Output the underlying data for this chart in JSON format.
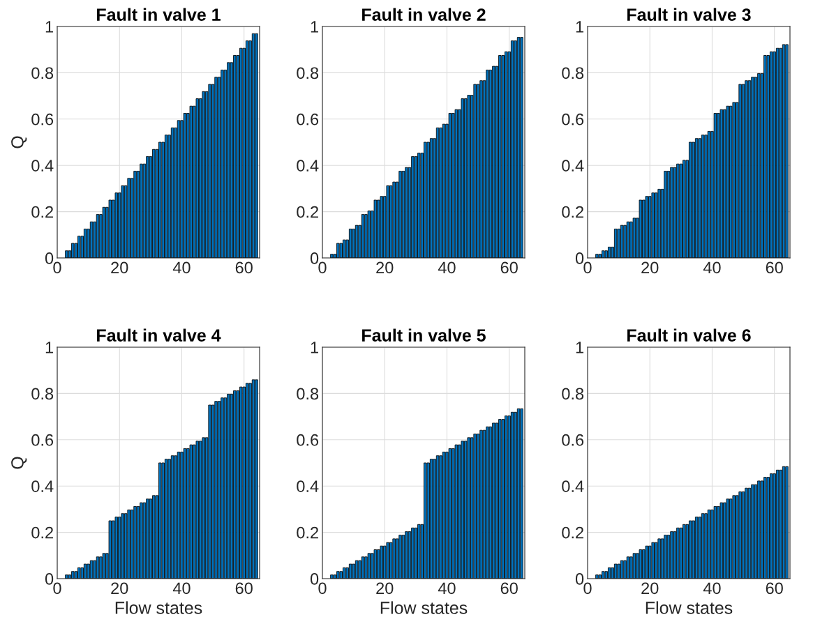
{
  "chart_data": [
    {
      "type": "bar",
      "title": "Fault in valve 1",
      "ylabel": "Q",
      "color": "#0072bd",
      "grid": true,
      "xlim": [
        0,
        65
      ],
      "ylim": [
        0,
        1
      ],
      "xticks": [
        0,
        20,
        40,
        60
      ],
      "yticks": [
        0,
        0.2,
        0.4,
        0.6,
        0.8,
        1
      ],
      "x": [
        1,
        2,
        3,
        4,
        5,
        6,
        7,
        8,
        9,
        10,
        11,
        12,
        13,
        14,
        15,
        16,
        17,
        18,
        19,
        20,
        21,
        22,
        23,
        24,
        25,
        26,
        27,
        28,
        29,
        30,
        31,
        32,
        33,
        34,
        35,
        36,
        37,
        38,
        39,
        40,
        41,
        42,
        43,
        44,
        45,
        46,
        47,
        48,
        49,
        50,
        51,
        52,
        53,
        54,
        55,
        56,
        57,
        58,
        59,
        60,
        61,
        62,
        63,
        64
      ],
      "values": [
        0,
        0,
        0.031,
        0.031,
        0.063,
        0.063,
        0.094,
        0.094,
        0.125,
        0.125,
        0.156,
        0.156,
        0.188,
        0.188,
        0.219,
        0.219,
        0.25,
        0.25,
        0.281,
        0.281,
        0.312,
        0.312,
        0.344,
        0.344,
        0.375,
        0.375,
        0.406,
        0.406,
        0.438,
        0.438,
        0.469,
        0.469,
        0.5,
        0.5,
        0.531,
        0.531,
        0.562,
        0.562,
        0.594,
        0.594,
        0.625,
        0.625,
        0.656,
        0.656,
        0.688,
        0.688,
        0.719,
        0.719,
        0.75,
        0.75,
        0.781,
        0.781,
        0.812,
        0.812,
        0.844,
        0.844,
        0.875,
        0.875,
        0.906,
        0.906,
        0.938,
        0.938,
        0.969,
        0.969
      ]
    },
    {
      "type": "bar",
      "title": "Fault in valve 2",
      "color": "#0072bd",
      "grid": true,
      "xlim": [
        0,
        65
      ],
      "ylim": [
        0,
        1
      ],
      "xticks": [
        0,
        20,
        40,
        60
      ],
      "yticks": [
        0,
        0.2,
        0.4,
        0.6,
        0.8,
        1
      ],
      "x": [
        1,
        2,
        3,
        4,
        5,
        6,
        7,
        8,
        9,
        10,
        11,
        12,
        13,
        14,
        15,
        16,
        17,
        18,
        19,
        20,
        21,
        22,
        23,
        24,
        25,
        26,
        27,
        28,
        29,
        30,
        31,
        32,
        33,
        34,
        35,
        36,
        37,
        38,
        39,
        40,
        41,
        42,
        43,
        44,
        45,
        46,
        47,
        48,
        49,
        50,
        51,
        52,
        53,
        54,
        55,
        56,
        57,
        58,
        59,
        60,
        61,
        62,
        63,
        64
      ],
      "values": [
        0,
        0,
        0.016,
        0.016,
        0.063,
        0.063,
        0.078,
        0.078,
        0.125,
        0.125,
        0.141,
        0.141,
        0.188,
        0.188,
        0.203,
        0.203,
        0.25,
        0.25,
        0.266,
        0.266,
        0.312,
        0.312,
        0.328,
        0.328,
        0.375,
        0.375,
        0.391,
        0.391,
        0.438,
        0.438,
        0.453,
        0.453,
        0.5,
        0.5,
        0.516,
        0.516,
        0.562,
        0.562,
        0.578,
        0.578,
        0.625,
        0.625,
        0.641,
        0.641,
        0.688,
        0.688,
        0.703,
        0.703,
        0.75,
        0.75,
        0.766,
        0.766,
        0.812,
        0.812,
        0.828,
        0.828,
        0.875,
        0.875,
        0.891,
        0.891,
        0.938,
        0.938,
        0.953,
        0.953
      ]
    },
    {
      "type": "bar",
      "title": "Fault in valve 3",
      "color": "#0072bd",
      "grid": true,
      "xlim": [
        0,
        65
      ],
      "ylim": [
        0,
        1
      ],
      "xticks": [
        0,
        20,
        40,
        60
      ],
      "yticks": [
        0,
        0.2,
        0.4,
        0.6,
        0.8,
        1
      ],
      "x": [
        1,
        2,
        3,
        4,
        5,
        6,
        7,
        8,
        9,
        10,
        11,
        12,
        13,
        14,
        15,
        16,
        17,
        18,
        19,
        20,
        21,
        22,
        23,
        24,
        25,
        26,
        27,
        28,
        29,
        30,
        31,
        32,
        33,
        34,
        35,
        36,
        37,
        38,
        39,
        40,
        41,
        42,
        43,
        44,
        45,
        46,
        47,
        48,
        49,
        50,
        51,
        52,
        53,
        54,
        55,
        56,
        57,
        58,
        59,
        60,
        61,
        62,
        63,
        64
      ],
      "values": [
        0,
        0,
        0.016,
        0.016,
        0.031,
        0.031,
        0.047,
        0.047,
        0.125,
        0.125,
        0.141,
        0.141,
        0.156,
        0.156,
        0.172,
        0.172,
        0.25,
        0.25,
        0.266,
        0.266,
        0.281,
        0.281,
        0.297,
        0.297,
        0.375,
        0.375,
        0.391,
        0.391,
        0.406,
        0.406,
        0.422,
        0.422,
        0.5,
        0.5,
        0.516,
        0.516,
        0.531,
        0.531,
        0.547,
        0.547,
        0.625,
        0.625,
        0.641,
        0.641,
        0.656,
        0.656,
        0.672,
        0.672,
        0.75,
        0.75,
        0.766,
        0.766,
        0.781,
        0.781,
        0.797,
        0.797,
        0.875,
        0.875,
        0.891,
        0.891,
        0.906,
        0.906,
        0.922,
        0.922
      ]
    },
    {
      "type": "bar",
      "title": "Fault in valve 4",
      "ylabel": "Q",
      "xlabel": "Flow states",
      "color": "#0072bd",
      "grid": true,
      "xlim": [
        0,
        65
      ],
      "ylim": [
        0,
        1
      ],
      "xticks": [
        0,
        20,
        40,
        60
      ],
      "yticks": [
        0,
        0.2,
        0.4,
        0.6,
        0.8,
        1
      ],
      "x": [
        1,
        2,
        3,
        4,
        5,
        6,
        7,
        8,
        9,
        10,
        11,
        12,
        13,
        14,
        15,
        16,
        17,
        18,
        19,
        20,
        21,
        22,
        23,
        24,
        25,
        26,
        27,
        28,
        29,
        30,
        31,
        32,
        33,
        34,
        35,
        36,
        37,
        38,
        39,
        40,
        41,
        42,
        43,
        44,
        45,
        46,
        47,
        48,
        49,
        50,
        51,
        52,
        53,
        54,
        55,
        56,
        57,
        58,
        59,
        60,
        61,
        62,
        63,
        64
      ],
      "values": [
        0,
        0,
        0.016,
        0.016,
        0.031,
        0.031,
        0.047,
        0.047,
        0.063,
        0.063,
        0.078,
        0.078,
        0.094,
        0.094,
        0.109,
        0.109,
        0.25,
        0.25,
        0.266,
        0.266,
        0.281,
        0.281,
        0.297,
        0.297,
        0.312,
        0.312,
        0.328,
        0.328,
        0.344,
        0.344,
        0.359,
        0.359,
        0.5,
        0.5,
        0.516,
        0.516,
        0.531,
        0.531,
        0.547,
        0.547,
        0.562,
        0.562,
        0.578,
        0.578,
        0.594,
        0.594,
        0.609,
        0.609,
        0.75,
        0.75,
        0.766,
        0.766,
        0.781,
        0.781,
        0.797,
        0.797,
        0.812,
        0.812,
        0.828,
        0.828,
        0.844,
        0.844,
        0.859,
        0.859
      ]
    },
    {
      "type": "bar",
      "title": "Fault in valve 5",
      "xlabel": "Flow states",
      "color": "#0072bd",
      "grid": true,
      "xlim": [
        0,
        65
      ],
      "ylim": [
        0,
        1
      ],
      "xticks": [
        0,
        20,
        40,
        60
      ],
      "yticks": [
        0,
        0.2,
        0.4,
        0.6,
        0.8,
        1
      ],
      "x": [
        1,
        2,
        3,
        4,
        5,
        6,
        7,
        8,
        9,
        10,
        11,
        12,
        13,
        14,
        15,
        16,
        17,
        18,
        19,
        20,
        21,
        22,
        23,
        24,
        25,
        26,
        27,
        28,
        29,
        30,
        31,
        32,
        33,
        34,
        35,
        36,
        37,
        38,
        39,
        40,
        41,
        42,
        43,
        44,
        45,
        46,
        47,
        48,
        49,
        50,
        51,
        52,
        53,
        54,
        55,
        56,
        57,
        58,
        59,
        60,
        61,
        62,
        63,
        64
      ],
      "values": [
        0,
        0,
        0.016,
        0.016,
        0.031,
        0.031,
        0.047,
        0.047,
        0.063,
        0.063,
        0.078,
        0.078,
        0.094,
        0.094,
        0.109,
        0.109,
        0.125,
        0.125,
        0.141,
        0.141,
        0.156,
        0.156,
        0.172,
        0.172,
        0.188,
        0.188,
        0.203,
        0.203,
        0.219,
        0.219,
        0.234,
        0.234,
        0.5,
        0.5,
        0.516,
        0.516,
        0.531,
        0.531,
        0.547,
        0.547,
        0.562,
        0.562,
        0.578,
        0.578,
        0.594,
        0.594,
        0.609,
        0.609,
        0.625,
        0.625,
        0.641,
        0.641,
        0.656,
        0.656,
        0.672,
        0.672,
        0.688,
        0.688,
        0.703,
        0.703,
        0.719,
        0.719,
        0.734,
        0.734
      ]
    },
    {
      "type": "bar",
      "title": "Fault in valve 6",
      "xlabel": "Flow states",
      "color": "#0072bd",
      "grid": true,
      "xlim": [
        0,
        65
      ],
      "ylim": [
        0,
        1
      ],
      "xticks": [
        0,
        20,
        40,
        60
      ],
      "yticks": [
        0,
        0.2,
        0.4,
        0.6,
        0.8,
        1
      ],
      "x": [
        1,
        2,
        3,
        4,
        5,
        6,
        7,
        8,
        9,
        10,
        11,
        12,
        13,
        14,
        15,
        16,
        17,
        18,
        19,
        20,
        21,
        22,
        23,
        24,
        25,
        26,
        27,
        28,
        29,
        30,
        31,
        32,
        33,
        34,
        35,
        36,
        37,
        38,
        39,
        40,
        41,
        42,
        43,
        44,
        45,
        46,
        47,
        48,
        49,
        50,
        51,
        52,
        53,
        54,
        55,
        56,
        57,
        58,
        59,
        60,
        61,
        62,
        63,
        64
      ],
      "values": [
        0,
        0,
        0.016,
        0.016,
        0.031,
        0.031,
        0.047,
        0.047,
        0.063,
        0.063,
        0.078,
        0.078,
        0.094,
        0.094,
        0.109,
        0.109,
        0.125,
        0.125,
        0.141,
        0.141,
        0.156,
        0.156,
        0.172,
        0.172,
        0.188,
        0.188,
        0.203,
        0.203,
        0.219,
        0.219,
        0.234,
        0.234,
        0.25,
        0.25,
        0.266,
        0.266,
        0.281,
        0.281,
        0.297,
        0.297,
        0.312,
        0.312,
        0.328,
        0.328,
        0.344,
        0.344,
        0.359,
        0.359,
        0.375,
        0.375,
        0.391,
        0.391,
        0.406,
        0.406,
        0.422,
        0.422,
        0.438,
        0.438,
        0.453,
        0.453,
        0.469,
        0.469,
        0.484,
        0.484
      ]
    }
  ]
}
